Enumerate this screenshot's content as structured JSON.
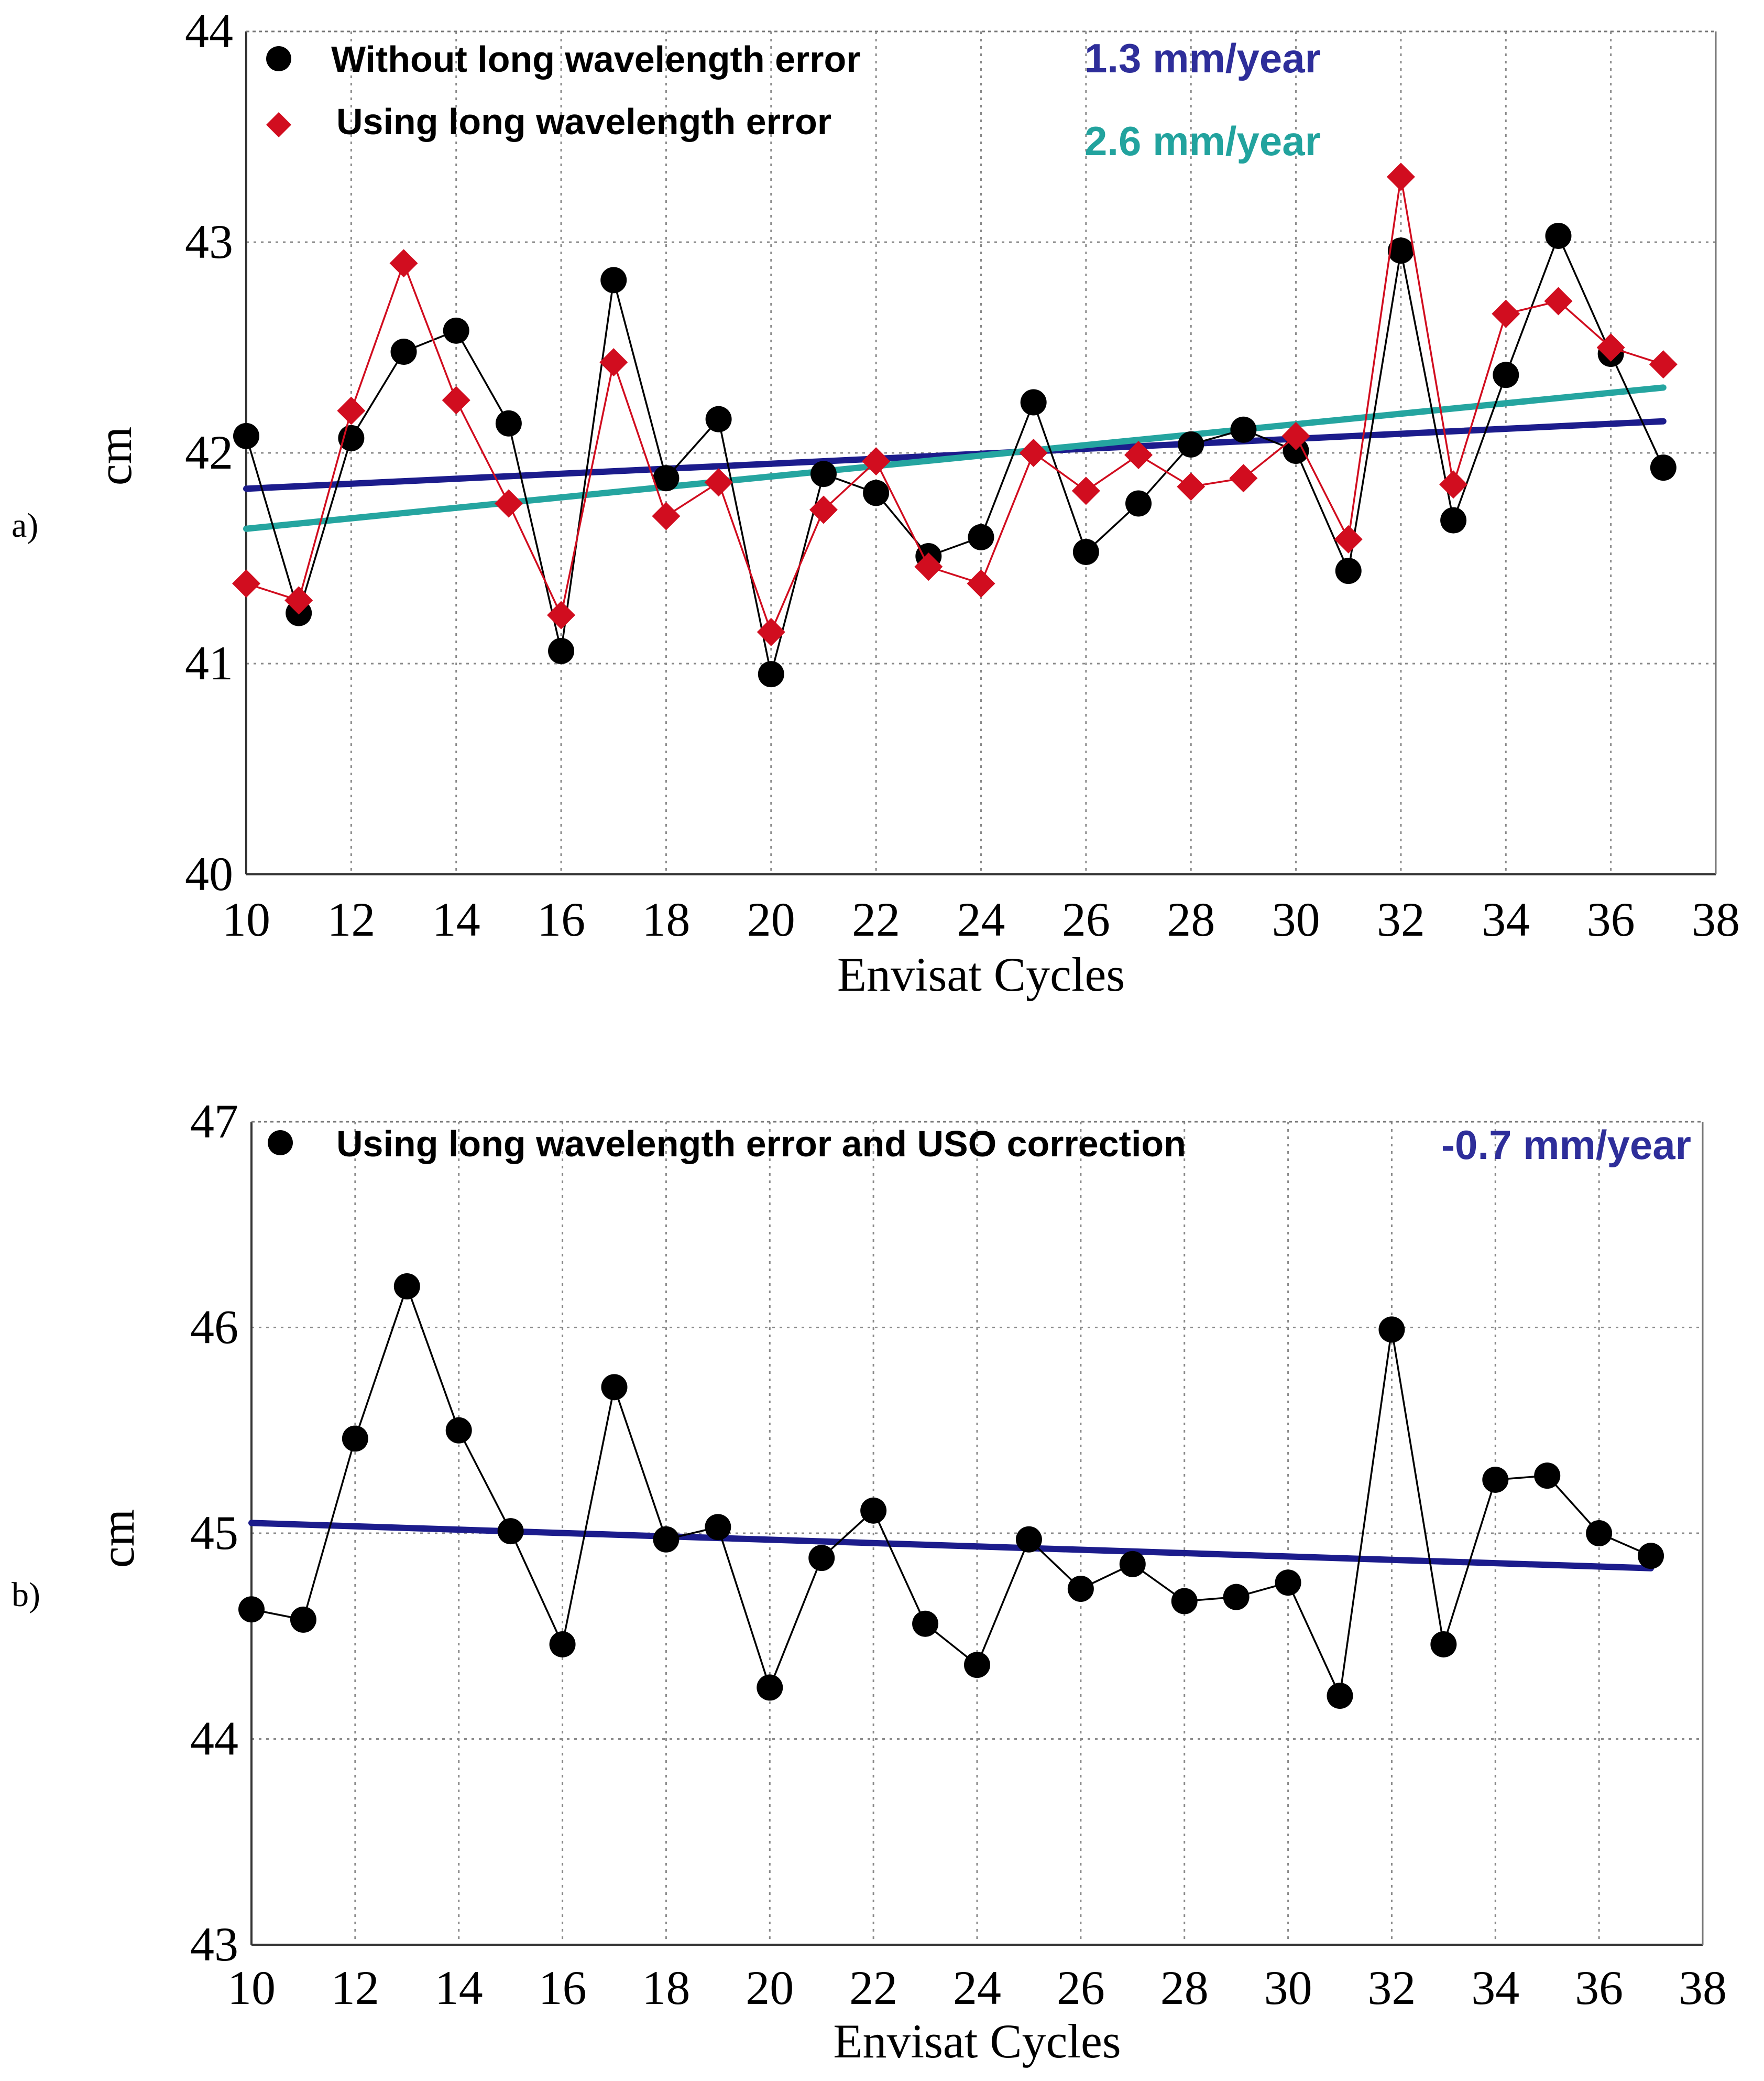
{
  "panels": {
    "a": {
      "label": "a)"
    },
    "b": {
      "label": "b)"
    }
  },
  "chart_data": [
    {
      "type": "line",
      "panel": "a)",
      "xlabel": "Envisat Cycles",
      "ylabel": "cm",
      "xlim": [
        10,
        38
      ],
      "ylim": [
        40,
        44
      ],
      "xticks": [
        10,
        12,
        14,
        16,
        18,
        20,
        22,
        24,
        26,
        28,
        30,
        32,
        34,
        36,
        38
      ],
      "yticks": [
        40,
        41,
        42,
        43,
        44
      ],
      "grid": true,
      "legend_position": "top-left",
      "x": [
        10,
        11,
        12,
        13,
        14,
        15,
        16,
        17,
        18,
        19,
        20,
        21,
        22,
        23,
        24,
        25,
        26,
        27,
        28,
        29,
        30,
        31,
        32,
        33,
        34,
        35,
        36,
        37
      ],
      "series": [
        {
          "name": "Without long wavelength error",
          "marker": "circle",
          "color": "#000000",
          "values": [
            42.08,
            41.24,
            42.07,
            42.48,
            42.58,
            42.14,
            41.06,
            42.82,
            41.88,
            42.16,
            40.95,
            41.9,
            41.81,
            41.51,
            41.6,
            42.24,
            41.53,
            41.76,
            42.04,
            42.11,
            42.01,
            41.44,
            42.96,
            41.68,
            42.37,
            43.03,
            42.47,
            41.93
          ]
        },
        {
          "name": "Using long wavelength error",
          "marker": "diamond",
          "color": "#d10d1f",
          "values": [
            41.38,
            41.3,
            42.2,
            42.9,
            42.25,
            41.76,
            41.23,
            42.43,
            41.7,
            41.86,
            41.15,
            41.73,
            41.96,
            41.46,
            41.38,
            42.0,
            41.82,
            41.99,
            41.84,
            41.88,
            42.08,
            41.59,
            43.31,
            41.85,
            42.66,
            42.72,
            42.5,
            42.42
          ]
        }
      ],
      "trends": [
        {
          "name": "1.3 mm/year",
          "color": "#1c1c8c",
          "label_color": "#2e2e9a",
          "x": [
            10,
            37
          ],
          "y": [
            41.83,
            42.15
          ]
        },
        {
          "name": "2.6 mm/year",
          "color": "#25a5a0",
          "label_color": "#22a39e",
          "x": [
            10,
            37
          ],
          "y": [
            41.64,
            42.31
          ]
        }
      ]
    },
    {
      "type": "line",
      "panel": "b)",
      "xlabel": "Envisat Cycles",
      "ylabel": "cm",
      "xlim": [
        10,
        38
      ],
      "ylim": [
        43,
        47
      ],
      "xticks": [
        10,
        12,
        14,
        16,
        18,
        20,
        22,
        24,
        26,
        28,
        30,
        32,
        34,
        36,
        38
      ],
      "yticks": [
        43,
        44,
        45,
        46,
        47
      ],
      "grid": true,
      "legend_position": "top-left",
      "x": [
        10,
        11,
        12,
        13,
        14,
        15,
        16,
        17,
        18,
        19,
        20,
        21,
        22,
        23,
        24,
        25,
        26,
        27,
        28,
        29,
        30,
        31,
        32,
        33,
        34,
        35,
        36,
        37
      ],
      "series": [
        {
          "name": "Using long wavelength error and USO correction",
          "marker": "circle",
          "color": "#000000",
          "values": [
            44.63,
            44.58,
            45.46,
            46.2,
            45.5,
            45.01,
            44.46,
            45.71,
            44.97,
            45.03,
            44.25,
            44.88,
            45.11,
            44.56,
            44.36,
            44.97,
            44.73,
            44.85,
            44.67,
            44.69,
            44.76,
            44.21,
            45.99,
            44.46,
            45.26,
            45.28,
            45.0,
            44.89
          ]
        }
      ],
      "trends": [
        {
          "name": "-0.7 mm/year",
          "color": "#1c1c8c",
          "label_color": "#2e2e9a",
          "x": [
            10,
            37
          ],
          "y": [
            45.05,
            44.83
          ]
        }
      ]
    }
  ]
}
